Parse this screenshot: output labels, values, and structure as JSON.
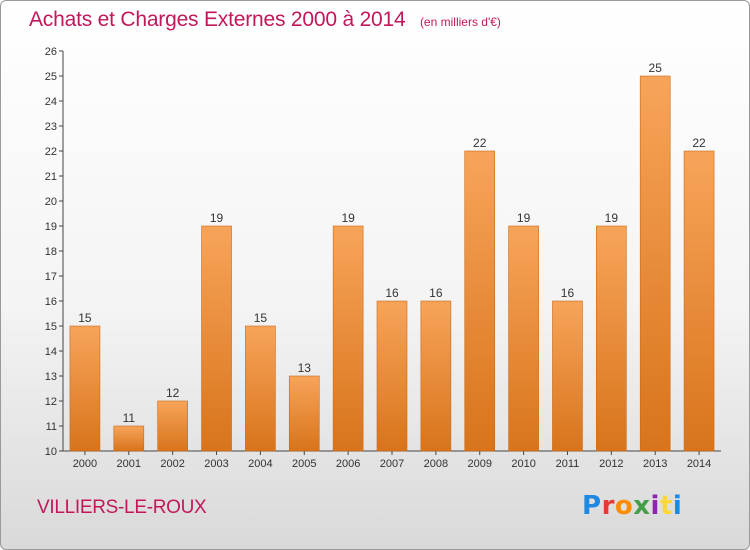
{
  "header": {
    "title": "Achats et Charges Externes 2000 à 2014",
    "subtitle": "(en milliers d'€)"
  },
  "footer": {
    "place": "VILLIERS-LE-ROUX",
    "logo": "Proxiti",
    "logo_colors": [
      "#1e88e5",
      "#e53935",
      "#fb8c00",
      "#43a047",
      "#8e24aa",
      "#fdd835",
      "#1e88e5"
    ]
  },
  "chart_data": {
    "type": "bar",
    "categories": [
      "2000",
      "2001",
      "2002",
      "2003",
      "2004",
      "2005",
      "2006",
      "2007",
      "2008",
      "2009",
      "2010",
      "2011",
      "2012",
      "2013",
      "2014"
    ],
    "values": [
      15,
      11,
      12,
      19,
      15,
      13,
      19,
      16,
      16,
      22,
      19,
      16,
      19,
      25,
      22
    ],
    "title": "Achats et Charges Externes 2000 à 2014",
    "xlabel": "",
    "ylabel": "",
    "ylim": [
      10,
      26
    ],
    "yticks": [
      10,
      11,
      12,
      13,
      14,
      15,
      16,
      17,
      18,
      19,
      20,
      21,
      22,
      23,
      24,
      25,
      26
    ],
    "grid": false,
    "bar_color": "#f0913a"
  }
}
